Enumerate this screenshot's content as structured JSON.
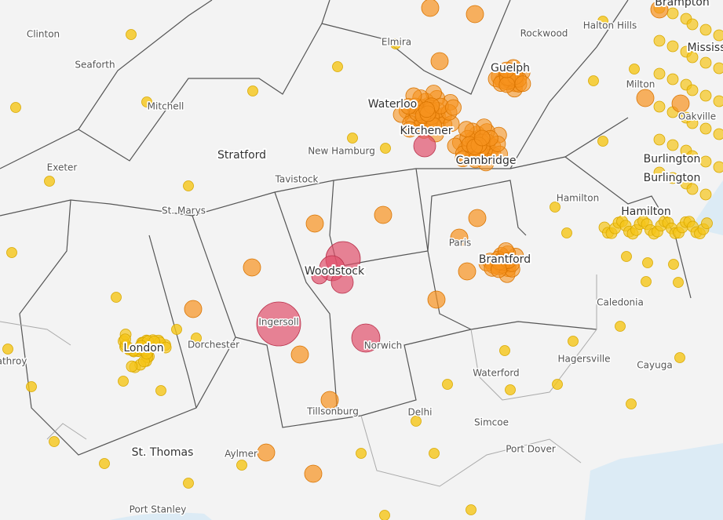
{
  "map": {
    "labels": [
      "Clinton",
      "Seaforth",
      "Mitchell",
      "Elmira",
      "Rockwood",
      "Halton Hills",
      "Brampton",
      "Mississ",
      "Guelph",
      "Waterloo",
      "Kitchener",
      "Milton",
      "Oakville",
      "New Hamburg",
      "Cambridge",
      "Burlington",
      "Burlington",
      "Stratford",
      "Tavistock",
      "Exeter",
      "St. Marys",
      "Hamilton",
      "Hamilton",
      "Woodstock",
      "Paris",
      "Brantford",
      "Ingersoll",
      "Caledonia",
      "London",
      "Dorchester",
      "Norwich",
      "Hagersville",
      "Cayuga",
      "athroy",
      "Waterford",
      "Tillsonburg",
      "Delhi",
      "Simcoe",
      "St. Thomas",
      "Aylmer",
      "Port Dover",
      "Port Stanley"
    ]
  }
}
